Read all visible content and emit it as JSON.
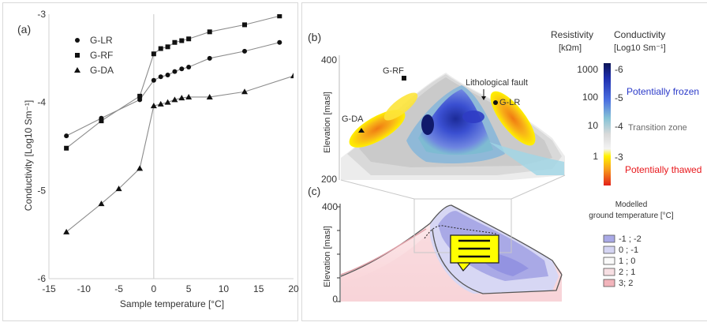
{
  "panel_a": {
    "label": "(a)",
    "chart_data": {
      "type": "scatter",
      "xlabel": "Sample temperature [°C]",
      "ylabel": "Conductivity  [Log10 Sm⁻¹]",
      "xlim": [
        -15,
        20
      ],
      "ylim": [
        -6.0,
        -3.0
      ],
      "x_ticks": [
        "-15",
        "-10",
        "-5",
        "0",
        "5",
        "10",
        "15",
        "20"
      ],
      "y_ticks": [
        "-3",
        "-4",
        "-5",
        "-6"
      ],
      "grid": false,
      "legend_position": "top-left",
      "series": [
        {
          "name": "G-LR",
          "marker": "circle",
          "x": [
            -12.5,
            -7.5,
            -2.0,
            0,
            1,
            2,
            3,
            4,
            5,
            8,
            13,
            18
          ],
          "y": [
            -4.38,
            -4.18,
            -3.97,
            -3.75,
            -3.71,
            -3.69,
            -3.65,
            -3.62,
            -3.6,
            -3.5,
            -3.42,
            -3.32
          ]
        },
        {
          "name": "G-RF",
          "marker": "square",
          "x": [
            -12.5,
            -7.5,
            -2.0,
            0,
            1,
            2,
            3,
            4,
            5,
            8,
            13,
            18
          ],
          "y": [
            -4.52,
            -4.21,
            -3.93,
            -3.45,
            -3.39,
            -3.37,
            -3.32,
            -3.3,
            -3.28,
            -3.2,
            -3.12,
            -3.02
          ]
        },
        {
          "name": "G-DA",
          "marker": "triangle",
          "x": [
            -12.5,
            -7.5,
            -5.0,
            -2.0,
            0,
            1,
            2,
            3,
            4,
            5,
            8,
            13,
            20
          ],
          "y": [
            -5.47,
            -5.15,
            -4.98,
            -4.75,
            -4.04,
            -4.02,
            -4.0,
            -3.97,
            -3.95,
            -3.94,
            -3.94,
            -3.88,
            -3.7
          ]
        }
      ]
    }
  },
  "panel_b": {
    "label": "(b)",
    "ylabel": "Elevation [masl]",
    "y_ticks": [
      "400",
      "200"
    ],
    "annotations": {
      "grf": "G-RF",
      "gda": "G-DA",
      "glr": "G-LR",
      "fault": "Lithological fault"
    }
  },
  "panel_c": {
    "label": "(c)",
    "ylabel": "Elevation [masl]",
    "y_ticks": [
      "400",
      "0"
    ],
    "legend_title_1": "Modelled",
    "legend_title_2": "ground temperature [°C]",
    "legend": [
      {
        "label": "-1 ; -2",
        "color": "#a9a9e6"
      },
      {
        "label": "0 ; -1",
        "color": "#d5d5f3"
      },
      {
        "label": "1 ; 0",
        "color": "#fafafa"
      },
      {
        "label": "2 ; 1",
        "color": "#f7dfe3"
      },
      {
        "label": "3; 2",
        "color": "#f2b4bb"
      }
    ]
  },
  "colorbar": {
    "res_title_1": "Resistivity",
    "res_title_2": "[kΩm]",
    "cond_title_1": "Conductivity",
    "cond_title_2": "[Log10 Sm⁻¹]",
    "res_ticks": [
      "1000",
      "100",
      "10",
      "1"
    ],
    "cond_ticks": [
      "-6",
      "-5",
      "-4",
      "-3"
    ],
    "label_frozen": "Potentially frozen",
    "label_transition": "Transition zone",
    "label_thawed": "Potentially thawed",
    "colors": {
      "frozen": "#2a39c9",
      "thawed": "#e8171b",
      "transition": "#6b6b6b"
    }
  }
}
